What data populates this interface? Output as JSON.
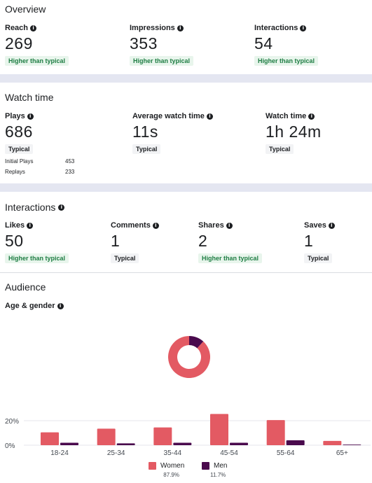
{
  "overview": {
    "title": "Overview",
    "metrics": [
      {
        "label": "Reach",
        "value": "269",
        "badge": "Higher than typical"
      },
      {
        "label": "Impressions",
        "value": "353",
        "badge": "Higher than typical"
      },
      {
        "label": "Interactions",
        "value": "54",
        "badge": "Higher than typical"
      }
    ]
  },
  "watch_time": {
    "title": "Watch time",
    "metrics": [
      {
        "label": "Plays",
        "value": "686",
        "badge": "Typical"
      },
      {
        "label": "Average watch time",
        "value": "11s",
        "badge": "Typical"
      },
      {
        "label": "Watch time",
        "value": "1h 24m",
        "badge": "Typical"
      }
    ],
    "breakdown": [
      {
        "label": "Initial Plays",
        "value": "453"
      },
      {
        "label": "Replays",
        "value": "233"
      }
    ]
  },
  "interactions": {
    "title": "Interactions",
    "metrics": [
      {
        "label": "Likes",
        "value": "50",
        "badge": "Higher than typical"
      },
      {
        "label": "Comments",
        "value": "1",
        "badge": "Typical"
      },
      {
        "label": "Shares",
        "value": "2",
        "badge": "Higher than typical"
      },
      {
        "label": "Saves",
        "value": "1",
        "badge": "Typical"
      }
    ]
  },
  "audience": {
    "title": "Audience",
    "subtitle": "Age & gender",
    "colors": {
      "women": "#e35a63",
      "men": "#4a0a4d",
      "grid": "#e4e6eb",
      "text": "#444950"
    },
    "legend": [
      {
        "name": "Women",
        "pct": "87.9%"
      },
      {
        "name": "Men",
        "pct": "11.7%"
      }
    ]
  },
  "chart_data": [
    {
      "type": "pie",
      "labels": [
        "Women",
        "Men"
      ],
      "values": [
        87.9,
        11.7
      ]
    },
    {
      "type": "bar",
      "categories": [
        "18-24",
        "25-34",
        "35-44",
        "45-54",
        "55-64",
        "65+"
      ],
      "series": [
        {
          "name": "Women",
          "values": [
            10.5,
            13.5,
            14.5,
            25.5,
            20.5,
            3.5
          ]
        },
        {
          "name": "Men",
          "values": [
            2.0,
            1.5,
            2.0,
            2.0,
            4.0,
            0.5
          ]
        }
      ],
      "yticks": [
        "20%",
        "0%"
      ],
      "ylim": [
        0,
        30
      ]
    }
  ]
}
